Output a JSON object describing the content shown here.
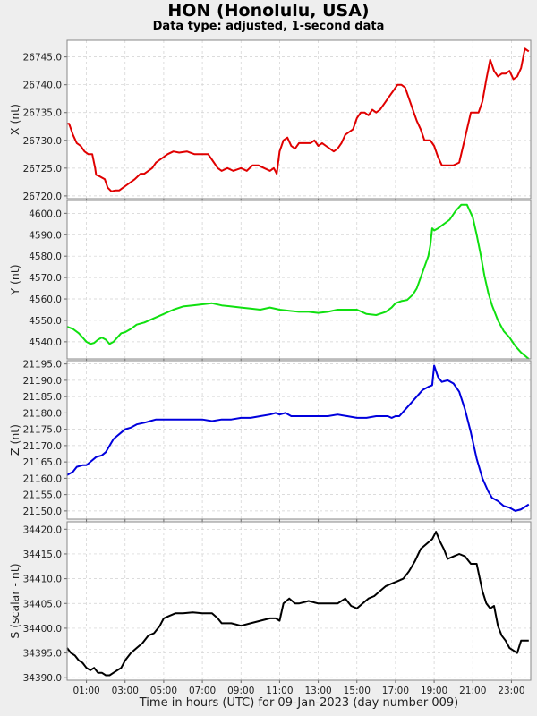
{
  "title": "HON (Honolulu, USA)",
  "subtitle": "Data type: adjusted, 1-second data",
  "chart_data": [
    {
      "type": "line",
      "ylabel": "X (nt)",
      "color": "#e00000",
      "ylim": [
        26719.5,
        26748
      ],
      "yticks": [
        26720.0,
        26725.0,
        26730.0,
        26735.0,
        26740.0,
        26745.0
      ],
      "x": [
        0,
        0.1,
        0.3,
        0.5,
        0.7,
        0.9,
        1.1,
        1.3,
        1.45,
        1.5,
        1.7,
        1.95,
        2.1,
        2.3,
        2.5,
        2.7,
        2.9,
        3.1,
        3.3,
        3.5,
        3.8,
        4.0,
        4.2,
        4.4,
        4.6,
        4.8,
        5.0,
        5.2,
        5.5,
        5.8,
        6.2,
        6.6,
        7.0,
        7.3,
        7.5,
        7.8,
        8.0,
        8.3,
        8.6,
        9.0,
        9.3,
        9.6,
        9.9,
        10.2,
        10.5,
        10.7,
        10.85,
        11.0,
        11.2,
        11.4,
        11.6,
        11.8,
        12.0,
        12.2,
        12.4,
        12.6,
        12.8,
        13.0,
        13.2,
        13.4,
        13.6,
        13.8,
        14.0,
        14.2,
        14.4,
        14.6,
        14.8,
        15.0,
        15.2,
        15.4,
        15.6,
        15.8,
        16.0,
        16.2,
        16.5,
        16.7,
        16.9,
        17.1,
        17.3,
        17.5,
        17.7,
        17.9,
        18.1,
        18.3,
        18.5,
        18.8,
        19.0,
        19.2,
        19.4,
        19.6,
        19.8,
        20.0,
        20.3,
        20.5,
        20.7,
        20.9,
        21.1,
        21.3,
        21.5,
        21.7,
        21.9,
        22.1,
        22.3,
        22.5,
        22.7,
        22.9,
        23.1,
        23.3,
        23.5,
        23.7,
        23.9
      ],
      "y": [
        26733,
        26733,
        26731,
        26729.5,
        26729,
        26728,
        26727.5,
        26727.5,
        26725,
        26723.8,
        26723.5,
        26723,
        26721.5,
        26720.8,
        26721,
        26721,
        26721.5,
        26722,
        26722.5,
        26723,
        26724,
        26724,
        26724.5,
        26725,
        26726,
        26726.5,
        26727,
        26727.5,
        26728,
        26727.8,
        26728,
        26727.5,
        26727.5,
        26727.5,
        26726.5,
        26725,
        26724.5,
        26725,
        26724.5,
        26725,
        26724.5,
        26725.5,
        26725.5,
        26725,
        26724.5,
        26725,
        26724,
        26728,
        26730,
        26730.5,
        26729,
        26728.5,
        26729.5,
        26729.5,
        26729.5,
        26729.5,
        26730,
        26729,
        26729.5,
        26729,
        26728.5,
        26728,
        26728.5,
        26729.5,
        26731,
        26731.5,
        26732,
        26734,
        26735,
        26735,
        26734.5,
        26735.5,
        26735,
        26735.5,
        26737,
        26738,
        26739,
        26740,
        26740,
        26739.5,
        26737.5,
        26735.5,
        26733.5,
        26732,
        26730,
        26730,
        26729,
        26727,
        26725.5,
        26725.5,
        26725.5,
        26725.5,
        26726,
        26729,
        26732,
        26735,
        26735,
        26735,
        26737,
        26741,
        26744.5,
        26742.5,
        26741.5,
        26742,
        26742,
        26742.5,
        26741,
        26741.5,
        26743,
        26746.5,
        26746
      ]
    },
    {
      "type": "line",
      "ylabel": "Y (nt)",
      "color": "#10e010",
      "ylim": [
        4532,
        4606
      ],
      "yticks": [
        4540.0,
        4550.0,
        4560.0,
        4570.0,
        4580.0,
        4590.0,
        4600.0
      ],
      "x": [
        0,
        0.3,
        0.6,
        0.8,
        1.0,
        1.2,
        1.4,
        1.6,
        1.8,
        2.0,
        2.2,
        2.4,
        2.6,
        2.8,
        3.0,
        3.3,
        3.6,
        4.0,
        4.5,
        5.0,
        5.5,
        6.0,
        6.5,
        7.0,
        7.5,
        8.0,
        8.5,
        9.0,
        9.5,
        10.0,
        10.5,
        11.0,
        11.5,
        12.0,
        12.5,
        13.0,
        13.5,
        14.0,
        14.5,
        15.0,
        15.5,
        16.0,
        16.5,
        16.8,
        17.0,
        17.3,
        17.6,
        17.9,
        18.1,
        18.3,
        18.5,
        18.7,
        18.8,
        18.9,
        19.0,
        19.2,
        19.5,
        19.8,
        20.1,
        20.4,
        20.7,
        21.0,
        21.2,
        21.4,
        21.6,
        21.8,
        22.0,
        22.3,
        22.6,
        22.9,
        23.2,
        23.5,
        23.9
      ],
      "y": [
        4547,
        4546,
        4544,
        4542,
        4540,
        4539,
        4539.5,
        4541,
        4542,
        4541,
        4539,
        4540,
        4542,
        4544,
        4544.5,
        4546,
        4548,
        4549,
        4551,
        4553,
        4555,
        4556.5,
        4557,
        4557.5,
        4558,
        4557,
        4556.5,
        4556,
        4555.5,
        4555,
        4556,
        4555,
        4554.5,
        4554,
        4554,
        4553.5,
        4554,
        4555,
        4555,
        4555,
        4553,
        4552.5,
        4554,
        4556,
        4558,
        4559,
        4559.5,
        4562,
        4565,
        4570,
        4575,
        4580,
        4585,
        4593,
        4592,
        4593,
        4595,
        4597,
        4601,
        4604,
        4604,
        4598,
        4590,
        4581,
        4571,
        4563,
        4557,
        4550,
        4545,
        4542,
        4538,
        4535,
        4532
      ]
    },
    {
      "type": "line",
      "ylabel": "Z (nt)",
      "color": "#0000dd",
      "ylim": [
        21147.5,
        21196
      ],
      "yticks": [
        21150.0,
        21155.0,
        21160.0,
        21165.0,
        21170.0,
        21175.0,
        21180.0,
        21185.0,
        21190.0,
        21195.0
      ],
      "x": [
        0,
        0.3,
        0.5,
        0.8,
        1.0,
        1.2,
        1.5,
        1.8,
        2.0,
        2.2,
        2.4,
        2.6,
        2.8,
        3.0,
        3.3,
        3.6,
        4.0,
        4.3,
        4.6,
        5.0,
        5.5,
        6.0,
        6.5,
        7.0,
        7.5,
        8.0,
        8.5,
        9.0,
        9.5,
        10.0,
        10.5,
        10.8,
        11.0,
        11.3,
        11.6,
        12.0,
        12.5,
        13.0,
        13.5,
        14.0,
        14.5,
        15.0,
        15.5,
        16.0,
        16.3,
        16.6,
        16.8,
        17.0,
        17.2,
        17.5,
        17.8,
        18.1,
        18.4,
        18.7,
        18.9,
        19.0,
        19.2,
        19.4,
        19.7,
        20.0,
        20.3,
        20.6,
        20.9,
        21.2,
        21.5,
        21.8,
        22.0,
        22.3,
        22.6,
        22.9,
        23.2,
        23.5,
        23.9
      ],
      "y": [
        21161,
        21162,
        21163.5,
        21164,
        21164,
        21165,
        21166.5,
        21167,
        21168,
        21170,
        21172,
        21173,
        21174,
        21175,
        21175.5,
        21176.5,
        21177,
        21177.5,
        21178,
        21178,
        21178,
        21178,
        21178,
        21178,
        21177.5,
        21178,
        21178,
        21178.5,
        21178.5,
        21179,
        21179.5,
        21180,
        21179.5,
        21180,
        21179,
        21179,
        21179,
        21179,
        21179,
        21179.5,
        21179,
        21178.5,
        21178.5,
        21179,
        21179,
        21179,
        21178.5,
        21179,
        21179,
        21181,
        21183,
        21185,
        21187,
        21188,
        21188.5,
        21194.5,
        21191,
        21189.5,
        21190,
        21189,
        21186.5,
        21181,
        21174,
        21166,
        21160,
        21156,
        21154,
        21153,
        21151.5,
        21151,
        21150,
        21150.5,
        21152
      ]
    },
    {
      "type": "line",
      "ylabel": "S (scalar - nt)",
      "color": "#000000",
      "ylim": [
        34389.5,
        34421.5
      ],
      "yticks": [
        34390.0,
        34395.0,
        34400.0,
        34405.0,
        34410.0,
        34415.0,
        34420.0
      ],
      "x": [
        0,
        0.2,
        0.4,
        0.6,
        0.8,
        1.0,
        1.2,
        1.4,
        1.6,
        1.8,
        2.0,
        2.2,
        2.4,
        2.6,
        2.8,
        3.0,
        3.3,
        3.6,
        3.9,
        4.2,
        4.5,
        4.8,
        5.0,
        5.3,
        5.6,
        6.0,
        6.5,
        7.0,
        7.5,
        7.8,
        8.0,
        8.5,
        9.0,
        9.5,
        10.0,
        10.5,
        10.8,
        11.0,
        11.2,
        11.5,
        11.8,
        12.0,
        12.5,
        13.0,
        13.5,
        14.0,
        14.4,
        14.7,
        15.0,
        15.3,
        15.6,
        15.9,
        16.2,
        16.5,
        16.8,
        17.1,
        17.4,
        17.7,
        18.0,
        18.3,
        18.6,
        18.9,
        19.1,
        19.3,
        19.5,
        19.7,
        20.0,
        20.3,
        20.6,
        20.9,
        21.2,
        21.5,
        21.7,
        21.9,
        22.1,
        22.3,
        22.5,
        22.7,
        22.9,
        23.1,
        23.3,
        23.5,
        23.9
      ],
      "y": [
        34396,
        34395,
        34394.5,
        34393.5,
        34393,
        34392,
        34391.5,
        34392,
        34391,
        34391,
        34390.5,
        34390.5,
        34391,
        34391.5,
        34392,
        34393.5,
        34395,
        34396,
        34397,
        34398.5,
        34399,
        34400.5,
        34402,
        34402.5,
        34403,
        34403,
        34403.2,
        34403,
        34403,
        34402,
        34401,
        34401,
        34400.5,
        34401,
        34401.5,
        34402,
        34402,
        34401.5,
        34405,
        34406,
        34405,
        34405,
        34405.5,
        34405,
        34405,
        34405,
        34406,
        34404.5,
        34404,
        34405,
        34406,
        34406.5,
        34407.5,
        34408.5,
        34409,
        34409.5,
        34410,
        34411.5,
        34413.5,
        34416,
        34417,
        34418,
        34419.5,
        34417.5,
        34416,
        34414,
        34414.5,
        34415,
        34414.5,
        34413,
        34413,
        34407.5,
        34405,
        34404,
        34404.5,
        34400.5,
        34398.5,
        34397.5,
        34396,
        34395.5,
        34395,
        34397.5,
        34397.5
      ]
    }
  ],
  "x_axis": {
    "label": "Time in hours (UTC) for 09-Jan-2023 (day number 009)",
    "range": [
      0,
      24
    ],
    "ticks": [
      1,
      3,
      5,
      7,
      9,
      11,
      13,
      15,
      17,
      19,
      21,
      23
    ],
    "tick_labels": [
      "01:00",
      "03:00",
      "05:00",
      "07:00",
      "09:00",
      "11:00",
      "13:00",
      "15:00",
      "17:00",
      "19:00",
      "21:00",
      "23:00"
    ]
  },
  "grid": true
}
